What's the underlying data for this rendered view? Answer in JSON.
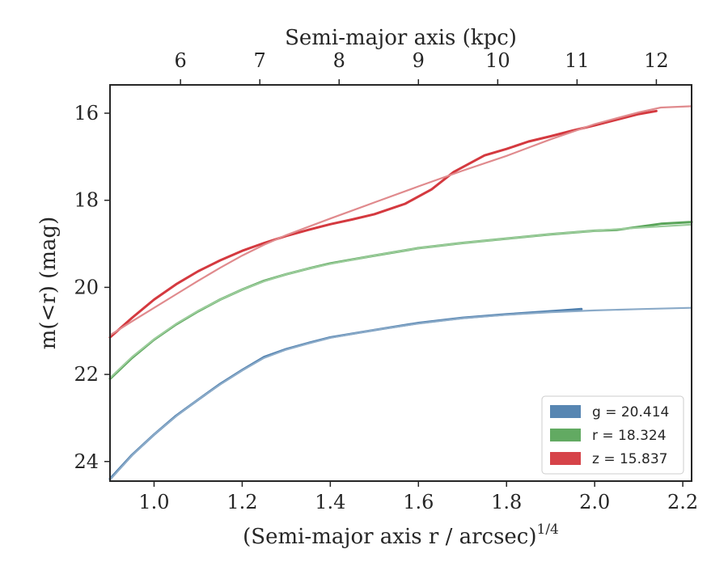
{
  "chart_data": {
    "type": "line",
    "xlabel": "(Semi-major axis r / arcsec)",
    "xlabel_sup": "1/4",
    "ylabel": "m(<r) (mag)",
    "top_xlabel": "Semi-major axis (kpc)",
    "xlim": [
      0.9,
      2.22
    ],
    "ylim": [
      24.45,
      15.35
    ],
    "x_ticks": [
      1.0,
      1.2,
      1.4,
      1.6,
      1.8,
      2.0,
      2.2
    ],
    "x_tick_labels": [
      "1.0",
      "1.2",
      "1.4",
      "1.6",
      "1.8",
      "2.0",
      "2.2"
    ],
    "y_ticks": [
      16,
      18,
      20,
      22,
      24
    ],
    "y_tick_labels": [
      "16",
      "18",
      "20",
      "22",
      "24"
    ],
    "top_x_ticks": [
      6,
      7,
      8,
      9,
      10,
      11,
      12
    ],
    "top_x_tick_labels": [
      "6",
      "7",
      "8",
      "9",
      "10",
      "11",
      "12"
    ],
    "top_x_positions": [
      1.06,
      1.24,
      1.42,
      1.6,
      1.78,
      1.96,
      2.14
    ],
    "grid": false,
    "legend_position": "bottom-right",
    "legend": [
      {
        "label": "g = 20.414",
        "color": "#4e7fae"
      },
      {
        "label": "r = 18.324",
        "color": "#5aa55a"
      },
      {
        "label": "z = 15.837",
        "color": "#d4393f"
      }
    ],
    "series": [
      {
        "name": "g = 20.414",
        "color": "#4e7fae",
        "kind": "data",
        "x": [
          0.9,
          0.95,
          1.0,
          1.05,
          1.1,
          1.15,
          1.2,
          1.25,
          1.3,
          1.35,
          1.4,
          1.5,
          1.6,
          1.7,
          1.8,
          1.9,
          1.97
        ],
        "y": [
          24.4,
          23.85,
          23.38,
          22.95,
          22.58,
          22.22,
          21.9,
          21.6,
          21.42,
          21.28,
          21.15,
          20.98,
          20.82,
          20.7,
          20.62,
          20.55,
          20.5
        ]
      },
      {
        "name": "g model",
        "color": "#8aaac8",
        "kind": "model",
        "x": [
          0.9,
          0.95,
          1.0,
          1.05,
          1.1,
          1.15,
          1.2,
          1.25,
          1.3,
          1.35,
          1.4,
          1.5,
          1.6,
          1.7,
          1.8,
          1.9,
          2.0,
          2.1,
          2.22
        ],
        "y": [
          24.42,
          23.86,
          23.38,
          22.96,
          22.58,
          22.23,
          21.91,
          21.62,
          21.43,
          21.29,
          21.16,
          20.98,
          20.83,
          20.71,
          20.63,
          20.57,
          20.53,
          20.5,
          20.47
        ]
      },
      {
        "name": "r = 18.324",
        "color": "#5aa55a",
        "kind": "data",
        "x": [
          0.9,
          0.95,
          1.0,
          1.05,
          1.1,
          1.15,
          1.2,
          1.25,
          1.3,
          1.35,
          1.4,
          1.5,
          1.6,
          1.7,
          1.8,
          1.9,
          2.0,
          2.05,
          2.15,
          2.22
        ],
        "y": [
          22.1,
          21.62,
          21.2,
          20.85,
          20.55,
          20.28,
          20.05,
          19.85,
          19.7,
          19.57,
          19.45,
          19.27,
          19.1,
          18.98,
          18.88,
          18.78,
          18.7,
          18.68,
          18.54,
          18.5
        ]
      },
      {
        "name": "r model",
        "color": "#9acc9a",
        "kind": "model",
        "x": [
          0.9,
          0.95,
          1.0,
          1.05,
          1.1,
          1.15,
          1.2,
          1.25,
          1.3,
          1.35,
          1.4,
          1.5,
          1.6,
          1.7,
          1.8,
          1.9,
          2.0,
          2.1,
          2.22
        ],
        "y": [
          22.08,
          21.6,
          21.19,
          20.84,
          20.54,
          20.28,
          20.05,
          19.86,
          19.7,
          19.57,
          19.46,
          19.27,
          19.1,
          18.98,
          18.88,
          18.78,
          18.7,
          18.63,
          18.56
        ]
      },
      {
        "name": "z = 15.837",
        "color": "#d4393f",
        "kind": "data",
        "x": [
          0.9,
          0.95,
          1.0,
          1.05,
          1.1,
          1.15,
          1.2,
          1.25,
          1.3,
          1.35,
          1.4,
          1.45,
          1.5,
          1.57,
          1.63,
          1.68,
          1.75,
          1.8,
          1.85,
          1.9,
          1.95,
          2.0,
          2.05,
          2.1,
          2.14
        ],
        "y": [
          21.15,
          20.7,
          20.28,
          19.93,
          19.63,
          19.38,
          19.16,
          18.98,
          18.82,
          18.68,
          18.55,
          18.44,
          18.32,
          18.08,
          17.75,
          17.35,
          16.97,
          16.82,
          16.65,
          16.53,
          16.4,
          16.28,
          16.15,
          16.02,
          15.95
        ]
      },
      {
        "name": "z model",
        "color": "#e08a8d",
        "kind": "model",
        "x": [
          0.9,
          0.95,
          1.0,
          1.05,
          1.1,
          1.15,
          1.2,
          1.25,
          1.3,
          1.4,
          1.5,
          1.6,
          1.7,
          1.8,
          1.9,
          2.0,
          2.1,
          2.15,
          2.22
        ],
        "y": [
          21.1,
          20.78,
          20.47,
          20.16,
          19.85,
          19.55,
          19.27,
          19.02,
          18.8,
          18.42,
          18.05,
          17.68,
          17.32,
          16.98,
          16.6,
          16.25,
          15.98,
          15.87,
          15.84
        ]
      }
    ]
  }
}
